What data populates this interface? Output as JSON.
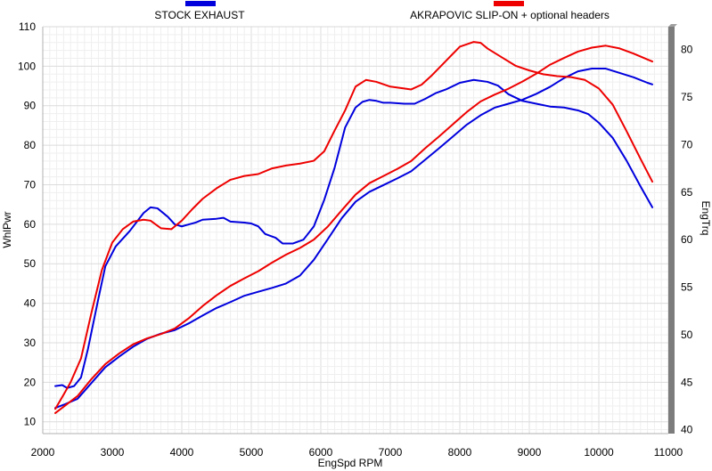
{
  "chart_data": {
    "type": "line",
    "xlabel": "EngSpd  RPM",
    "ylabel_left": "WhlPwr",
    "ylabel_right": "EngTrq",
    "xlim": [
      2000,
      11000
    ],
    "ylim_left": [
      7,
      110
    ],
    "ylim_right": [
      39.6,
      82.4
    ],
    "xticks": [
      "2000",
      "3000",
      "4000",
      "5000",
      "6000",
      "7000",
      "8000",
      "9000",
      "10000",
      "11000"
    ],
    "yticks_left": [
      "10",
      "20",
      "30",
      "40",
      "50",
      "60",
      "70",
      "80",
      "90",
      "100",
      "110"
    ],
    "yticks_right": [
      "40",
      "45",
      "50",
      "55",
      "60",
      "65",
      "70",
      "75",
      "80"
    ],
    "grid": true,
    "legend_position": "top",
    "colors": {
      "stock": "#0000dd",
      "akrapovic": "#ee0000"
    },
    "legend": [
      {
        "label": "STOCK EXHAUST",
        "color": "#0000dd"
      },
      {
        "label": "AKRAPOVIC SLIP-ON + optional headers",
        "color": "#ee0000"
      }
    ],
    "series": [
      {
        "name": "STOCK EXHAUST",
        "measure": "WhlPwr",
        "axis": "left",
        "color": "#0000dd",
        "points": [
          [
            2180,
            13.5
          ],
          [
            2300,
            14.3
          ],
          [
            2500,
            15.8
          ],
          [
            2700,
            19.8
          ],
          [
            2900,
            23.8
          ],
          [
            3100,
            26.5
          ],
          [
            3300,
            29
          ],
          [
            3500,
            31
          ],
          [
            3700,
            32.3
          ],
          [
            3900,
            33.2
          ],
          [
            4100,
            34.9
          ],
          [
            4300,
            36.9
          ],
          [
            4500,
            38.8
          ],
          [
            4700,
            40.3
          ],
          [
            4900,
            41.9
          ],
          [
            5100,
            42.9
          ],
          [
            5300,
            43.9
          ],
          [
            5500,
            45
          ],
          [
            5700,
            47
          ],
          [
            5900,
            51
          ],
          [
            6100,
            56.2
          ],
          [
            6300,
            61.5
          ],
          [
            6500,
            65.7
          ],
          [
            6700,
            68.2
          ],
          [
            6900,
            69.9
          ],
          [
            7100,
            71.6
          ],
          [
            7300,
            73.4
          ],
          [
            7500,
            76.3
          ],
          [
            7700,
            79.2
          ],
          [
            7900,
            82.2
          ],
          [
            8100,
            85.2
          ],
          [
            8300,
            87.6
          ],
          [
            8500,
            89.5
          ],
          [
            8700,
            90.5
          ],
          [
            8900,
            91.5
          ],
          [
            9100,
            93
          ],
          [
            9300,
            94.8
          ],
          [
            9500,
            97
          ],
          [
            9700,
            98.7
          ],
          [
            9900,
            99.4
          ],
          [
            10100,
            99.4
          ],
          [
            10300,
            98.3
          ],
          [
            10500,
            97.2
          ],
          [
            10700,
            95.8
          ],
          [
            10770,
            95.4
          ]
        ]
      },
      {
        "name": "STOCK EXHAUST",
        "measure": "EngTrq",
        "axis": "right",
        "color": "#0000dd",
        "points": [
          [
            2180,
            44.6
          ],
          [
            2280,
            44.7
          ],
          [
            2350,
            44.4
          ],
          [
            2450,
            44.6
          ],
          [
            2550,
            45.5
          ],
          [
            2650,
            48.5
          ],
          [
            2800,
            53.8
          ],
          [
            2900,
            57.2
          ],
          [
            3050,
            59.3
          ],
          [
            3250,
            60.9
          ],
          [
            3450,
            62.8
          ],
          [
            3550,
            63.4
          ],
          [
            3650,
            63.3
          ],
          [
            3800,
            62.4
          ],
          [
            3900,
            61.6
          ],
          [
            4000,
            61.4
          ],
          [
            4200,
            61.8
          ],
          [
            4300,
            62.1
          ],
          [
            4500,
            62.2
          ],
          [
            4600,
            62.3
          ],
          [
            4700,
            61.9
          ],
          [
            4900,
            61.8
          ],
          [
            5000,
            61.7
          ],
          [
            5100,
            61.4
          ],
          [
            5200,
            60.6
          ],
          [
            5350,
            60.2
          ],
          [
            5450,
            59.6
          ],
          [
            5600,
            59.6
          ],
          [
            5750,
            60
          ],
          [
            5900,
            61.4
          ],
          [
            6050,
            64.2
          ],
          [
            6200,
            67.6
          ],
          [
            6350,
            71.8
          ],
          [
            6500,
            73.9
          ],
          [
            6600,
            74.5
          ],
          [
            6700,
            74.7
          ],
          [
            6800,
            74.6
          ],
          [
            6900,
            74.4
          ],
          [
            7000,
            74.4
          ],
          [
            7200,
            74.3
          ],
          [
            7350,
            74.3
          ],
          [
            7500,
            74.8
          ],
          [
            7650,
            75.4
          ],
          [
            7800,
            75.8
          ],
          [
            8000,
            76.5
          ],
          [
            8200,
            76.8
          ],
          [
            8400,
            76.6
          ],
          [
            8550,
            76.2
          ],
          [
            8700,
            75.3
          ],
          [
            8900,
            74.6
          ],
          [
            9100,
            74.3
          ],
          [
            9300,
            74
          ],
          [
            9500,
            73.9
          ],
          [
            9700,
            73.6
          ],
          [
            9850,
            73.2
          ],
          [
            10000,
            72.3
          ],
          [
            10200,
            70.7
          ],
          [
            10400,
            68.3
          ],
          [
            10600,
            65.6
          ],
          [
            10770,
            63.4
          ]
        ]
      },
      {
        "name": "AKRAPOVIC SLIP-ON + optional headers",
        "measure": "WhlPwr",
        "axis": "left",
        "color": "#ee0000",
        "points": [
          [
            2180,
            12.2
          ],
          [
            2300,
            13.8
          ],
          [
            2500,
            16.5
          ],
          [
            2700,
            20.8
          ],
          [
            2900,
            24.6
          ],
          [
            3100,
            27.3
          ],
          [
            3300,
            29.6
          ],
          [
            3500,
            31.1
          ],
          [
            3700,
            32.2
          ],
          [
            3900,
            33.6
          ],
          [
            4100,
            36.2
          ],
          [
            4300,
            39.3
          ],
          [
            4500,
            42
          ],
          [
            4700,
            44.4
          ],
          [
            4900,
            46.3
          ],
          [
            5100,
            48.1
          ],
          [
            5300,
            50.3
          ],
          [
            5500,
            52.3
          ],
          [
            5700,
            54
          ],
          [
            5900,
            56.1
          ],
          [
            6100,
            59.4
          ],
          [
            6300,
            63.5
          ],
          [
            6500,
            67.5
          ],
          [
            6700,
            70.4
          ],
          [
            6900,
            72.2
          ],
          [
            7100,
            74
          ],
          [
            7300,
            76
          ],
          [
            7500,
            79.2
          ],
          [
            7700,
            82.2
          ],
          [
            7900,
            85.3
          ],
          [
            8100,
            88.4
          ],
          [
            8300,
            91.1
          ],
          [
            8500,
            92.8
          ],
          [
            8700,
            94.3
          ],
          [
            8900,
            96.1
          ],
          [
            9100,
            98.1
          ],
          [
            9300,
            100.4
          ],
          [
            9500,
            102.1
          ],
          [
            9700,
            103.7
          ],
          [
            9900,
            104.7
          ],
          [
            10100,
            105.2
          ],
          [
            10300,
            104.5
          ],
          [
            10500,
            103.2
          ],
          [
            10700,
            101.7
          ],
          [
            10770,
            101.2
          ]
        ]
      },
      {
        "name": "AKRAPOVIC SLIP-ON + optional headers",
        "measure": "EngTrq",
        "axis": "right",
        "color": "#ee0000",
        "points": [
          [
            2180,
            42.2
          ],
          [
            2300,
            43.7
          ],
          [
            2400,
            45
          ],
          [
            2550,
            47.5
          ],
          [
            2700,
            52.3
          ],
          [
            2850,
            56.8
          ],
          [
            3000,
            59.7
          ],
          [
            3150,
            61.1
          ],
          [
            3300,
            61.9
          ],
          [
            3450,
            62.1
          ],
          [
            3550,
            62
          ],
          [
            3700,
            61.2
          ],
          [
            3850,
            61.1
          ],
          [
            4000,
            62
          ],
          [
            4150,
            63.2
          ],
          [
            4300,
            64.3
          ],
          [
            4500,
            65.4
          ],
          [
            4700,
            66.3
          ],
          [
            4900,
            66.7
          ],
          [
            5100,
            66.9
          ],
          [
            5300,
            67.5
          ],
          [
            5500,
            67.8
          ],
          [
            5700,
            68
          ],
          [
            5900,
            68.3
          ],
          [
            6050,
            69.3
          ],
          [
            6200,
            71.5
          ],
          [
            6350,
            73.6
          ],
          [
            6500,
            76.1
          ],
          [
            6650,
            76.8
          ],
          [
            6800,
            76.6
          ],
          [
            7000,
            76.1
          ],
          [
            7200,
            75.9
          ],
          [
            7300,
            75.8
          ],
          [
            7450,
            76.3
          ],
          [
            7600,
            77.3
          ],
          [
            7800,
            78.8
          ],
          [
            8000,
            80.3
          ],
          [
            8200,
            80.8
          ],
          [
            8300,
            80.7
          ],
          [
            8400,
            80.1
          ],
          [
            8600,
            79.2
          ],
          [
            8800,
            78.3
          ],
          [
            9000,
            77.8
          ],
          [
            9200,
            77.4
          ],
          [
            9400,
            77.2
          ],
          [
            9600,
            77.1
          ],
          [
            9800,
            76.8
          ],
          [
            10000,
            75.9
          ],
          [
            10200,
            74.2
          ],
          [
            10400,
            71.4
          ],
          [
            10600,
            68.5
          ],
          [
            10770,
            66.1
          ]
        ]
      }
    ]
  }
}
